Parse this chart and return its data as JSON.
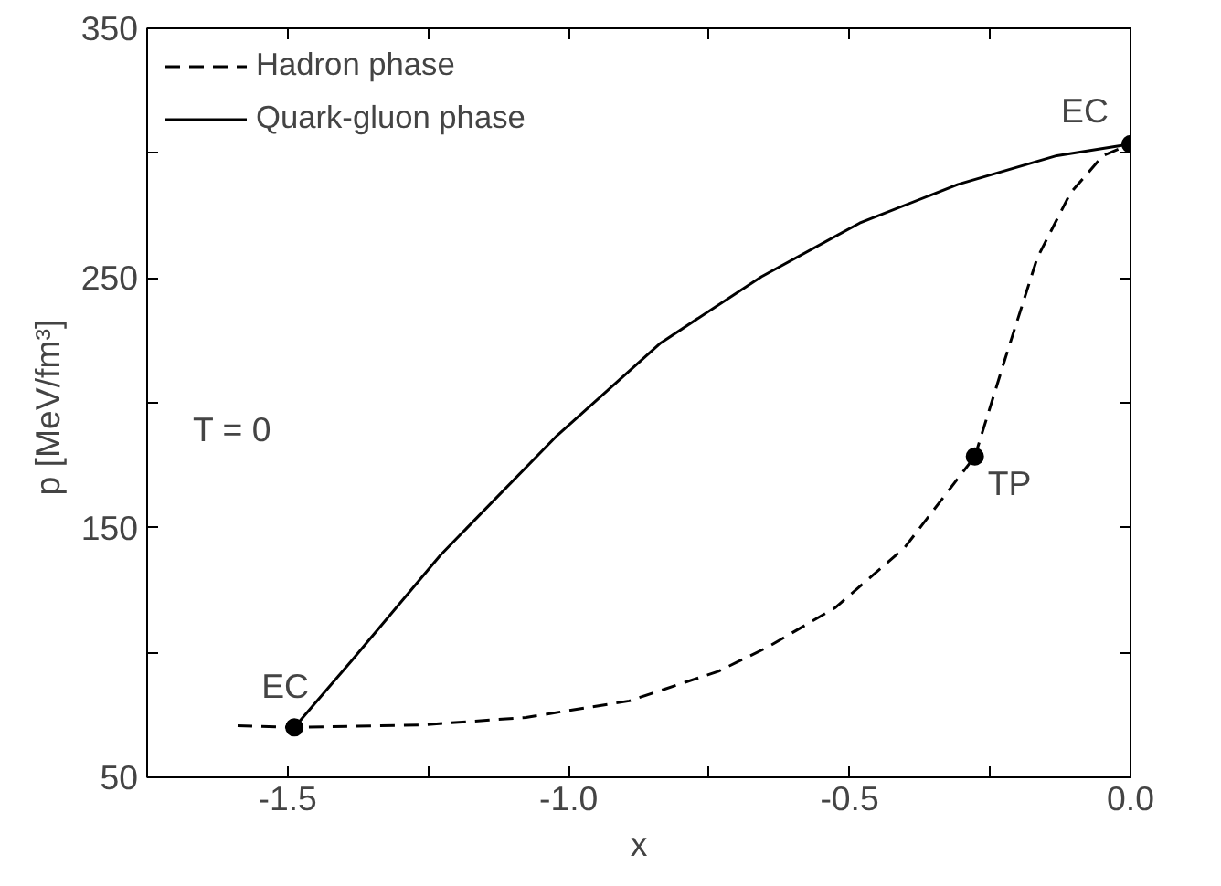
{
  "chart_data": {
    "type": "line",
    "xlabel": "x",
    "ylabel": "p  [MeV/fm³]",
    "xlim": [
      -1.75,
      0.0
    ],
    "ylim": [
      50,
      350
    ],
    "xticks": [
      {
        "value": -1.75,
        "label": null
      },
      {
        "value": -1.5,
        "label": "-1.5"
      },
      {
        "value": -1.25,
        "label": null
      },
      {
        "value": -1.0,
        "label": "-1.0"
      },
      {
        "value": -0.75,
        "label": null
      },
      {
        "value": -0.5,
        "label": "-0.5"
      },
      {
        "value": -0.25,
        "label": null
      },
      {
        "value": 0.0,
        "label": "0.0"
      }
    ],
    "yticks": [
      50,
      {
        "value": 100,
        "label": null
      },
      150,
      {
        "value": 200,
        "label": null
      },
      250,
      {
        "value": 300,
        "label": null
      },
      350
    ],
    "grid": false,
    "legend": "top left",
    "series": [
      {
        "name": "Hadron phase",
        "color": "#000000",
        "line_style": "dashed",
        "x": [
          -1.589,
          -1.488,
          -1.259,
          -1.076,
          -0.892,
          -0.733,
          -0.647,
          -0.525,
          -0.402,
          -0.277
        ],
        "values": [
          70.7,
          70,
          71,
          74,
          80.6,
          92.5,
          102,
          118,
          142,
          178.5
        ]
      },
      {
        "color": "#000000",
        "line_style": "dashed",
        "x": [
          -0.277,
          -0.224,
          -0.166,
          -0.107,
          -0.049,
          0.0
        ],
        "values": [
          178.5,
          217,
          258,
          284,
          299,
          303.6
        ]
      },
      {
        "name": "Quark-gluon phase",
        "color": "#000000",
        "line_style": "solid",
        "x": [
          -1.488,
          -1.387,
          -1.228,
          -1.02,
          -0.836,
          -0.657,
          -0.482,
          -0.307,
          -0.131,
          0.0
        ],
        "values": [
          70,
          96.5,
          139,
          187,
          224,
          250.5,
          272,
          287.5,
          299,
          303.6
        ]
      },
      {
        "type": "scatter",
        "marker": "circle",
        "color": "#000000",
        "x": [
          -1.488,
          -0.277,
          0.0
        ],
        "values": [
          70,
          178.5,
          303.6
        ]
      }
    ],
    "annotations": [
      {
        "text": "EC",
        "x": -1.488,
        "y": 70
      },
      {
        "text": "TP",
        "x": -0.277,
        "y": 178.5
      },
      {
        "text": "EC",
        "x": 0.0,
        "y": 303.6
      },
      "T = 0"
    ]
  }
}
